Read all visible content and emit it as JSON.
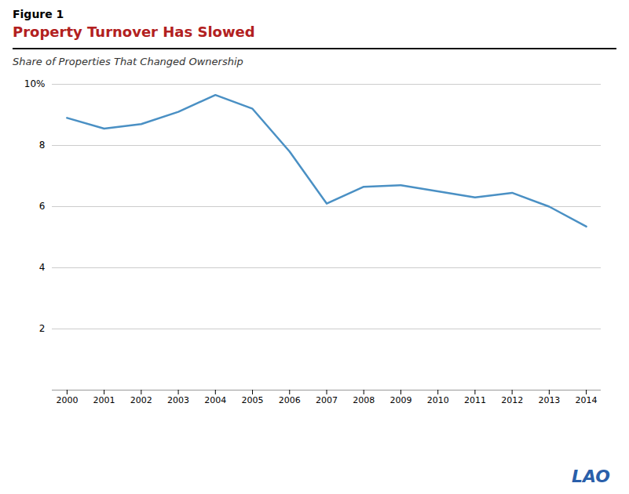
{
  "chart_data": {
    "type": "line",
    "title": "Property Turnover Has Slowed",
    "subtitle": "Share of Properties That Changed Ownership",
    "annotations": [
      "Figure 1",
      "LAO"
    ],
    "x": [
      2000,
      2001,
      2002,
      2003,
      2004,
      2005,
      2006,
      2007,
      2008,
      2009,
      2010,
      2011,
      2012,
      2013,
      2014
    ],
    "values": [
      8.9,
      8.55,
      8.7,
      9.1,
      9.65,
      9.2,
      7.8,
      6.1,
      6.65,
      6.7,
      6.5,
      6.3,
      6.45,
      6.0,
      5.35
    ],
    "color": "#4a90c4",
    "xlim": [
      1999.6,
      2014.4
    ],
    "xticks": [
      2000,
      2001,
      2002,
      2003,
      2004,
      2005,
      2006,
      2007,
      2008,
      2009,
      2010,
      2011,
      2012,
      2013,
      2014
    ],
    "ylim": [
      0,
      10
    ],
    "yticks": [
      {
        "value": 0,
        "label": ""
      },
      2,
      4,
      6,
      8,
      {
        "value": 10,
        "label": "10%"
      }
    ],
    "grid": true
  }
}
